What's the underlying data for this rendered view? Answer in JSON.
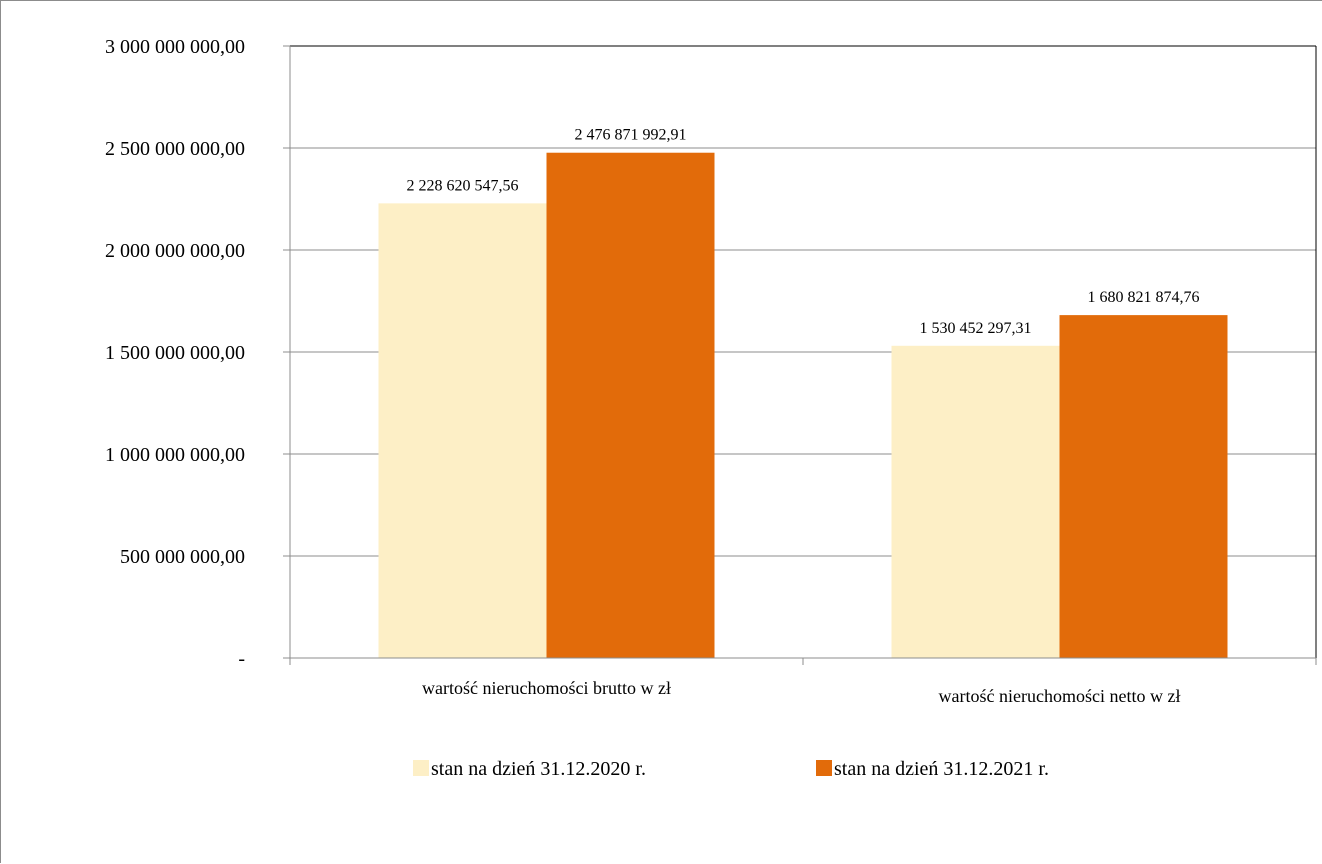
{
  "chart_data": {
    "type": "bar",
    "categories": [
      "wartość nieruchomości brutto w zł",
      "wartość nieruchomości netto w zł"
    ],
    "series": [
      {
        "name": "stan  na dzień  31.12.2020 r.",
        "color": "#FDEFC6",
        "values": [
          2228620547.56,
          1530452297.31
        ],
        "labels": [
          "2 228 620 547,56",
          "1 530 452 297,31"
        ]
      },
      {
        "name": "stan  na dzień  31.12.2021 r.",
        "color": "#E26B0A",
        "values": [
          2476871992.91,
          1680821874.76
        ],
        "labels": [
          "2 476 871 992,91",
          "1 680 821 874,76"
        ]
      }
    ],
    "ylim": [
      0,
      3000000000
    ],
    "yticks": [
      0,
      500000000,
      1000000000,
      1500000000,
      2000000000,
      2500000000,
      3000000000
    ],
    "ytick_labels": [
      "-",
      "500 000 000,00",
      "1 000 000 000,00",
      "1 500 000 000,00",
      "2 000 000 000,00",
      "2 500 000 000,00",
      "3 000 000 000,00"
    ],
    "grid": true,
    "legend_position": "bottom",
    "title": "",
    "xlabel": "",
    "ylabel": ""
  }
}
